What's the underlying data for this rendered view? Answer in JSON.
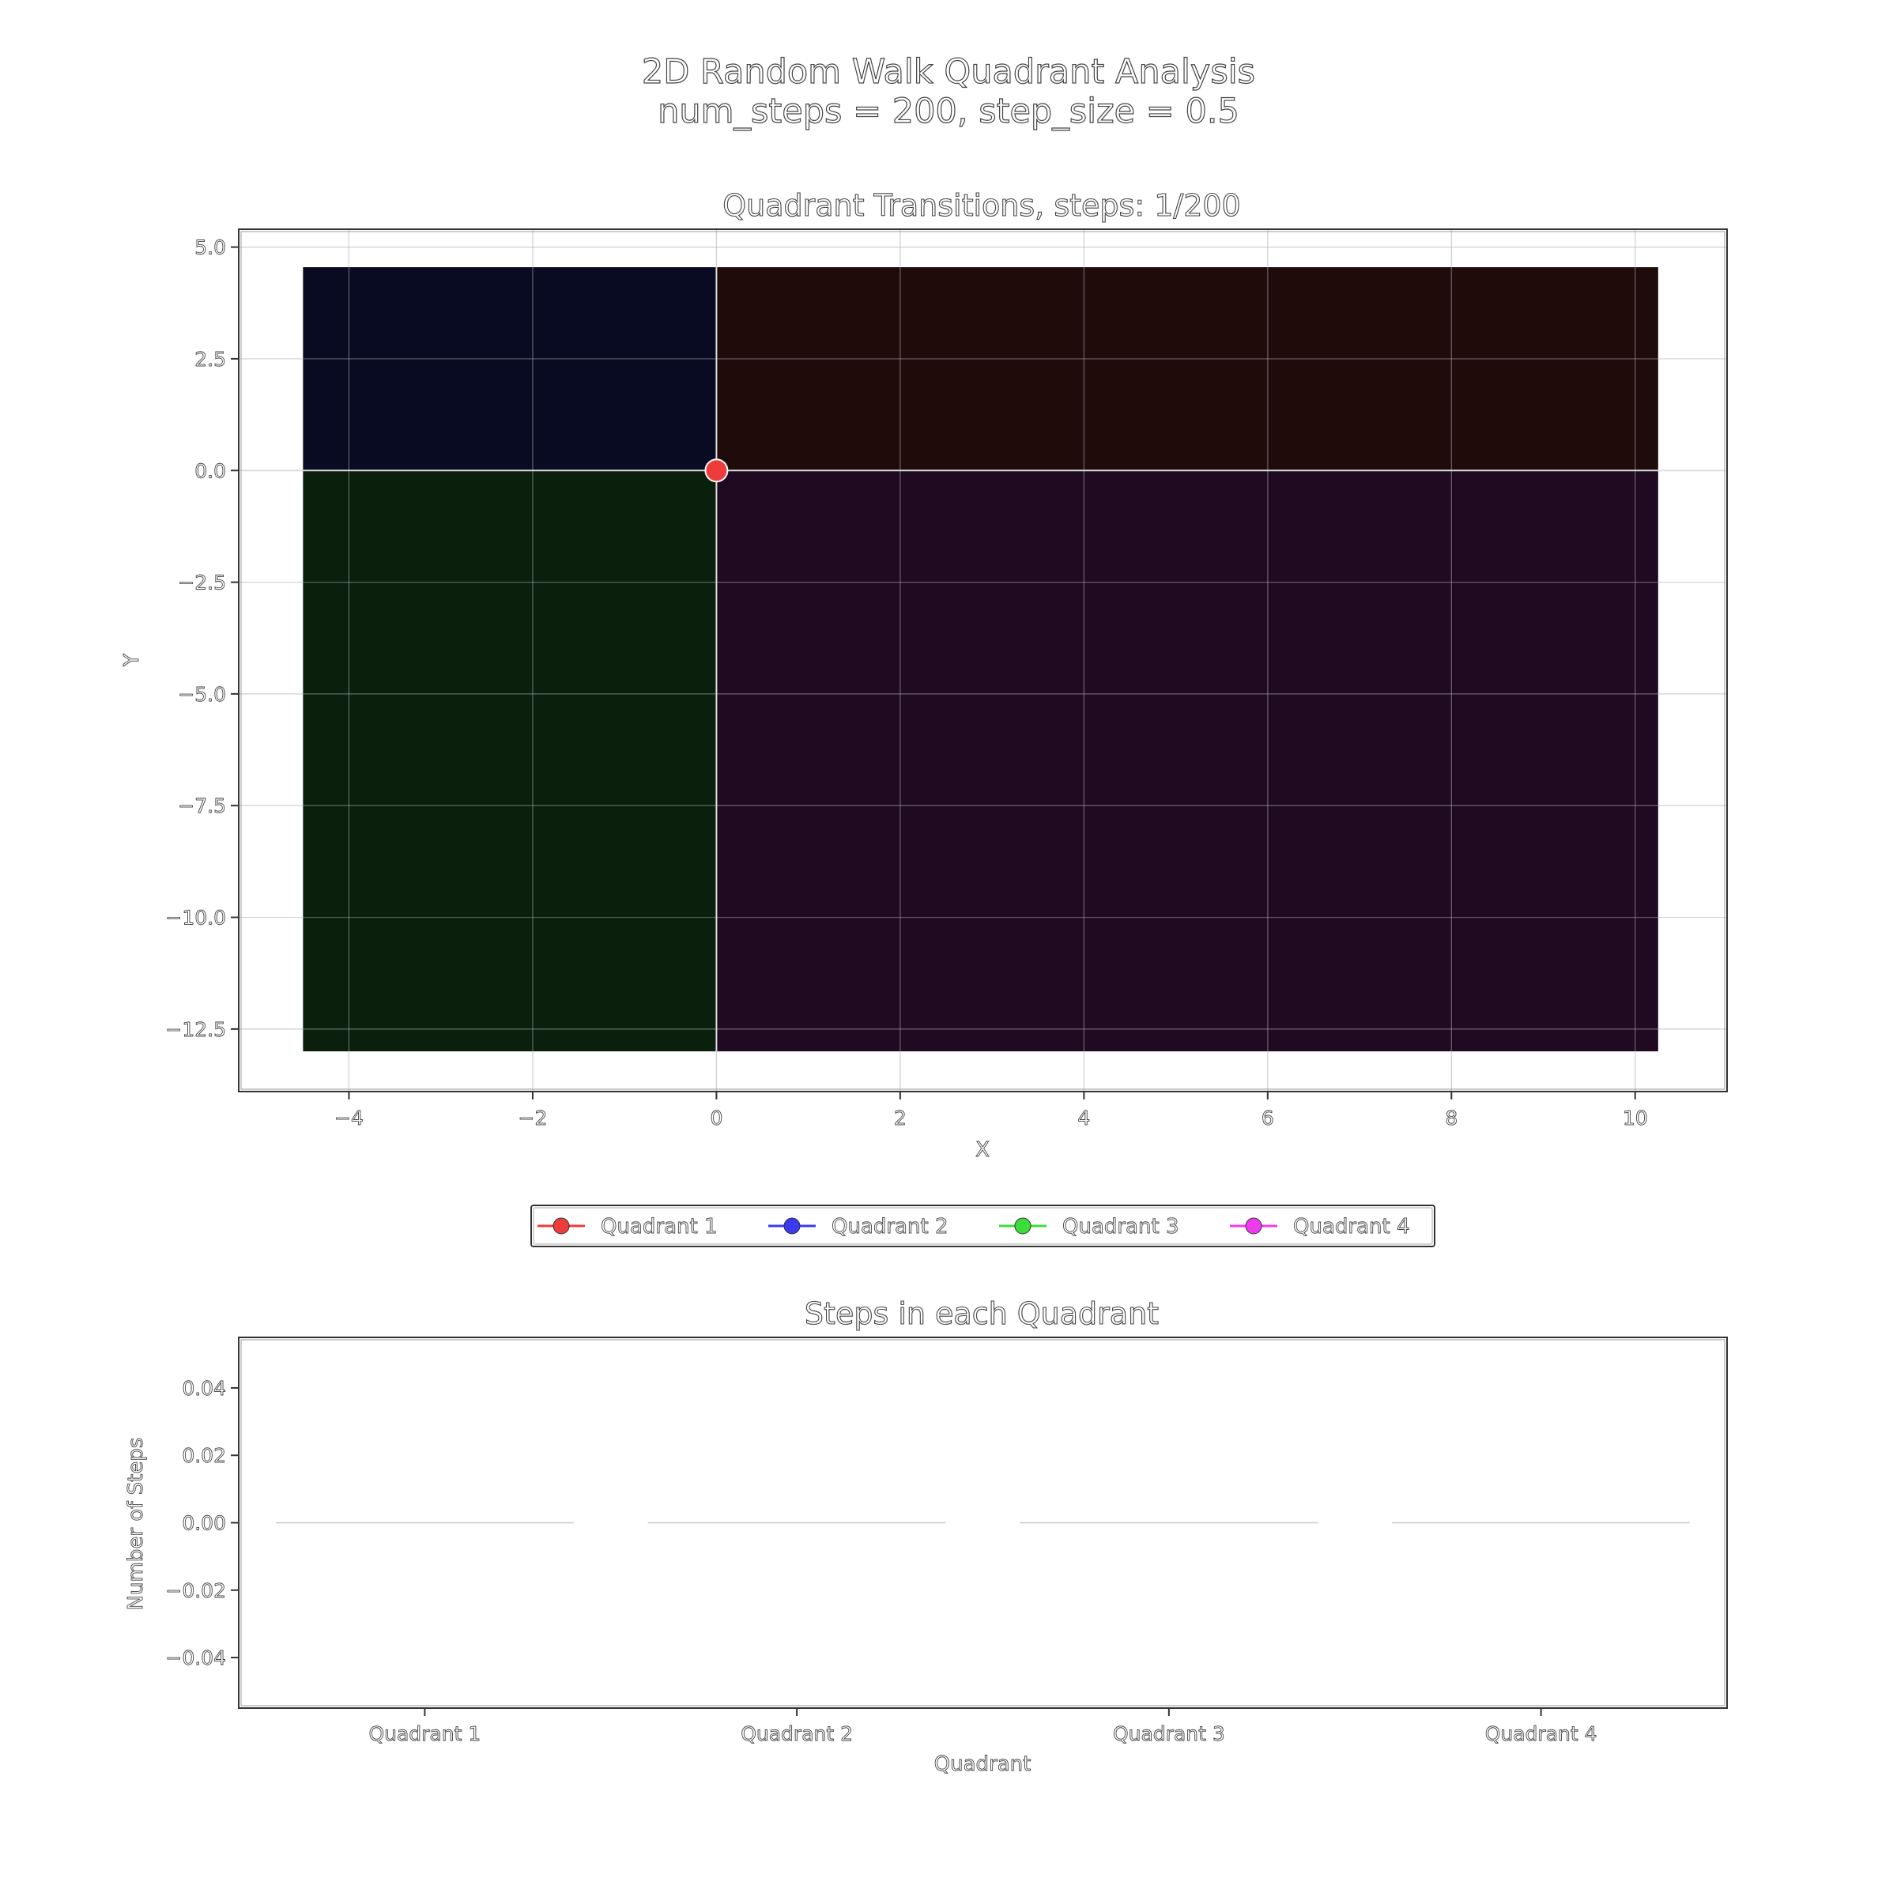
{
  "figure": {
    "suptitle_line1": "2D Random Walk Quadrant Analysis",
    "suptitle_line2": "num_steps = 200, step_size = 0.5"
  },
  "chart_data": [
    {
      "type": "scatter",
      "title": "Quadrant Transitions, steps: 1/200",
      "xlabel": "X",
      "ylabel": "Y",
      "xlim": [
        -5.2,
        11.0
      ],
      "ylim": [
        -13.9,
        5.4
      ],
      "xticks": [
        -4,
        -2,
        0,
        2,
        4,
        6,
        8,
        10
      ],
      "yticks": [
        5.0,
        2.5,
        0.0,
        -2.5,
        -5.0,
        -7.5,
        -10.0,
        -12.5
      ],
      "xtick_labels": [
        "−4",
        "−2",
        "0",
        "2",
        "4",
        "6",
        "8",
        "10"
      ],
      "ytick_labels": [
        "5.0",
        "2.5",
        "0.0",
        "−2.5",
        "−5.0",
        "−7.5",
        "−10.0",
        "−12.5"
      ],
      "grid": true,
      "regions": [
        {
          "quadrant": "Quadrant 1",
          "x": [
            0,
            10.25
          ],
          "y": [
            0,
            4.55
          ],
          "color": "#1f0c0a"
        },
        {
          "quadrant": "Quadrant 2",
          "x": [
            -4.5,
            0
          ],
          "y": [
            0,
            4.55
          ],
          "color": "#090b22"
        },
        {
          "quadrant": "Quadrant 3",
          "x": [
            -4.5,
            0
          ],
          "y": [
            -13.0,
            0
          ],
          "color": "#0a1f0c"
        },
        {
          "quadrant": "Quadrant 4",
          "x": [
            0,
            10.25
          ],
          "y": [
            -13.0,
            0
          ],
          "color": "#1f0a22"
        }
      ],
      "points": [
        {
          "x": 0.0,
          "y": 0.0,
          "color": "#ee3b3b"
        }
      ]
    },
    {
      "type": "bar",
      "title": "Steps in each Quadrant",
      "xlabel": "Quadrant",
      "ylabel": "Number of Steps",
      "categories": [
        "Quadrant 1",
        "Quadrant 2",
        "Quadrant 3",
        "Quadrant 4"
      ],
      "values": [
        0,
        0,
        0,
        0
      ],
      "ylim": [
        -0.055,
        0.055
      ],
      "yticks": [
        0.04,
        0.02,
        0.0,
        -0.02,
        -0.04
      ],
      "ytick_labels": [
        "0.04",
        "0.02",
        "0.00",
        "−0.02",
        "−0.04"
      ]
    }
  ],
  "legend": {
    "placement": "center",
    "items": [
      {
        "label": "Quadrant 1",
        "color": "#ee3b3b"
      },
      {
        "label": "Quadrant 2",
        "color": "#3b3bee"
      },
      {
        "label": "Quadrant 3",
        "color": "#3bdd3b"
      },
      {
        "label": "Quadrant 4",
        "color": "#ee3bee"
      }
    ]
  }
}
